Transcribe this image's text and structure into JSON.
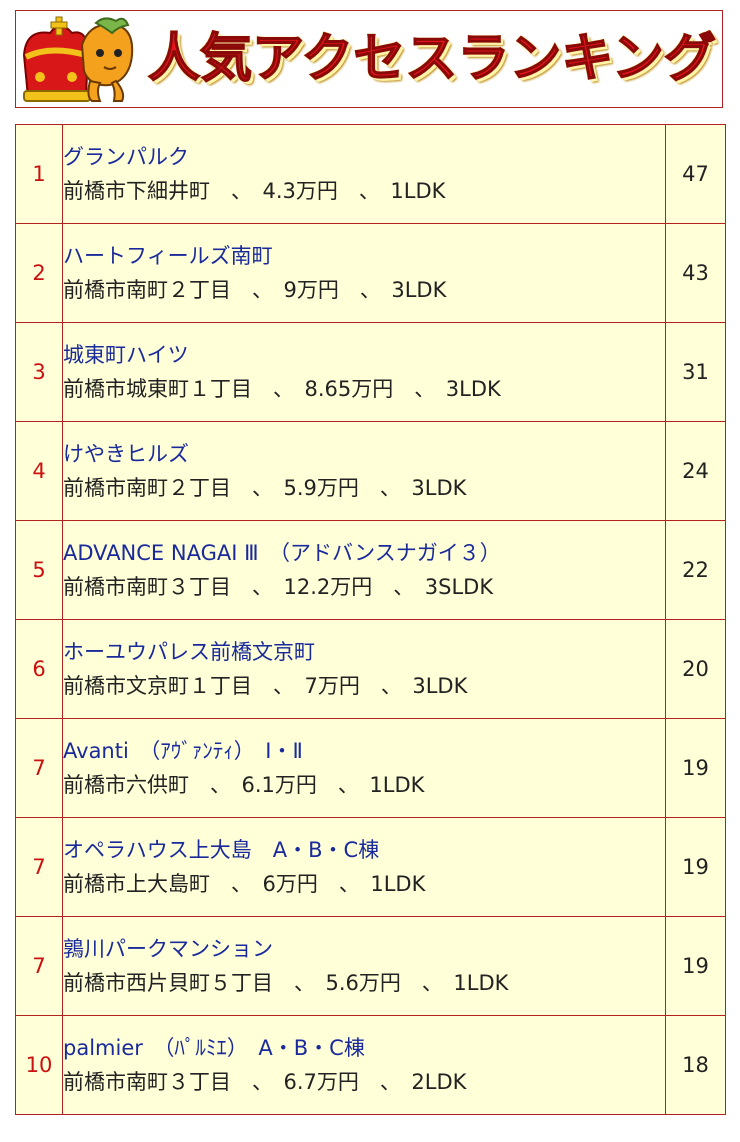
{
  "header": {
    "title": "人気アクセスランキング",
    "mascot_icon": "crowned-horse-mascot-icon",
    "title_color": "#e8141b"
  },
  "colors": {
    "border": "#b22222",
    "cell_background": "#ffffd8",
    "rank_text": "#cc1010",
    "link_text": "#1a2a9c"
  },
  "ranking": [
    {
      "rank": "1",
      "name": "グランパルク",
      "detail": "前橋市下細井町　、　4.3万円　、　1LDK",
      "count": "47"
    },
    {
      "rank": "2",
      "name": "ハートフィールズ南町",
      "detail": "前橋市南町２丁目　、　9万円　、　3LDK",
      "count": "43"
    },
    {
      "rank": "3",
      "name": "城東町ハイツ",
      "detail": "前橋市城東町１丁目　、　8.65万円　、　3LDK",
      "count": "31"
    },
    {
      "rank": "4",
      "name": "けやきヒルズ",
      "detail": "前橋市南町２丁目　、　5.9万円　、　3LDK",
      "count": "24"
    },
    {
      "rank": "5",
      "name": "ADVANCE NAGAI Ⅲ　（アドバンスナガイ３）",
      "detail": "前橋市南町３丁目　、　12.2万円　、　3SLDK",
      "count": "22"
    },
    {
      "rank": "6",
      "name": "ホーユウパレス前橋文京町",
      "detail": "前橋市文京町１丁目　、　7万円　、　3LDK",
      "count": "20"
    },
    {
      "rank": "7",
      "name": "Avanti　（ｱｳﾞｧﾝﾃｨ）　Ⅰ・Ⅱ",
      "detail": "前橋市六供町　、　6.1万円　、　1LDK",
      "count": "19"
    },
    {
      "rank": "7",
      "name": "オペラハウス上大島　A・B・C棟",
      "detail": "前橋市上大島町　、　6万円　、　1LDK",
      "count": "19"
    },
    {
      "rank": "7",
      "name": "鶉川パークマンション",
      "detail": "前橋市西片貝町５丁目　、　5.6万円　、　1LDK",
      "count": "19"
    },
    {
      "rank": "10",
      "name": "palmier　（ﾊﾟﾙﾐｴ）　A・B・C棟",
      "detail": "前橋市南町３丁目　、　6.7万円　、　2LDK",
      "count": "18"
    }
  ]
}
